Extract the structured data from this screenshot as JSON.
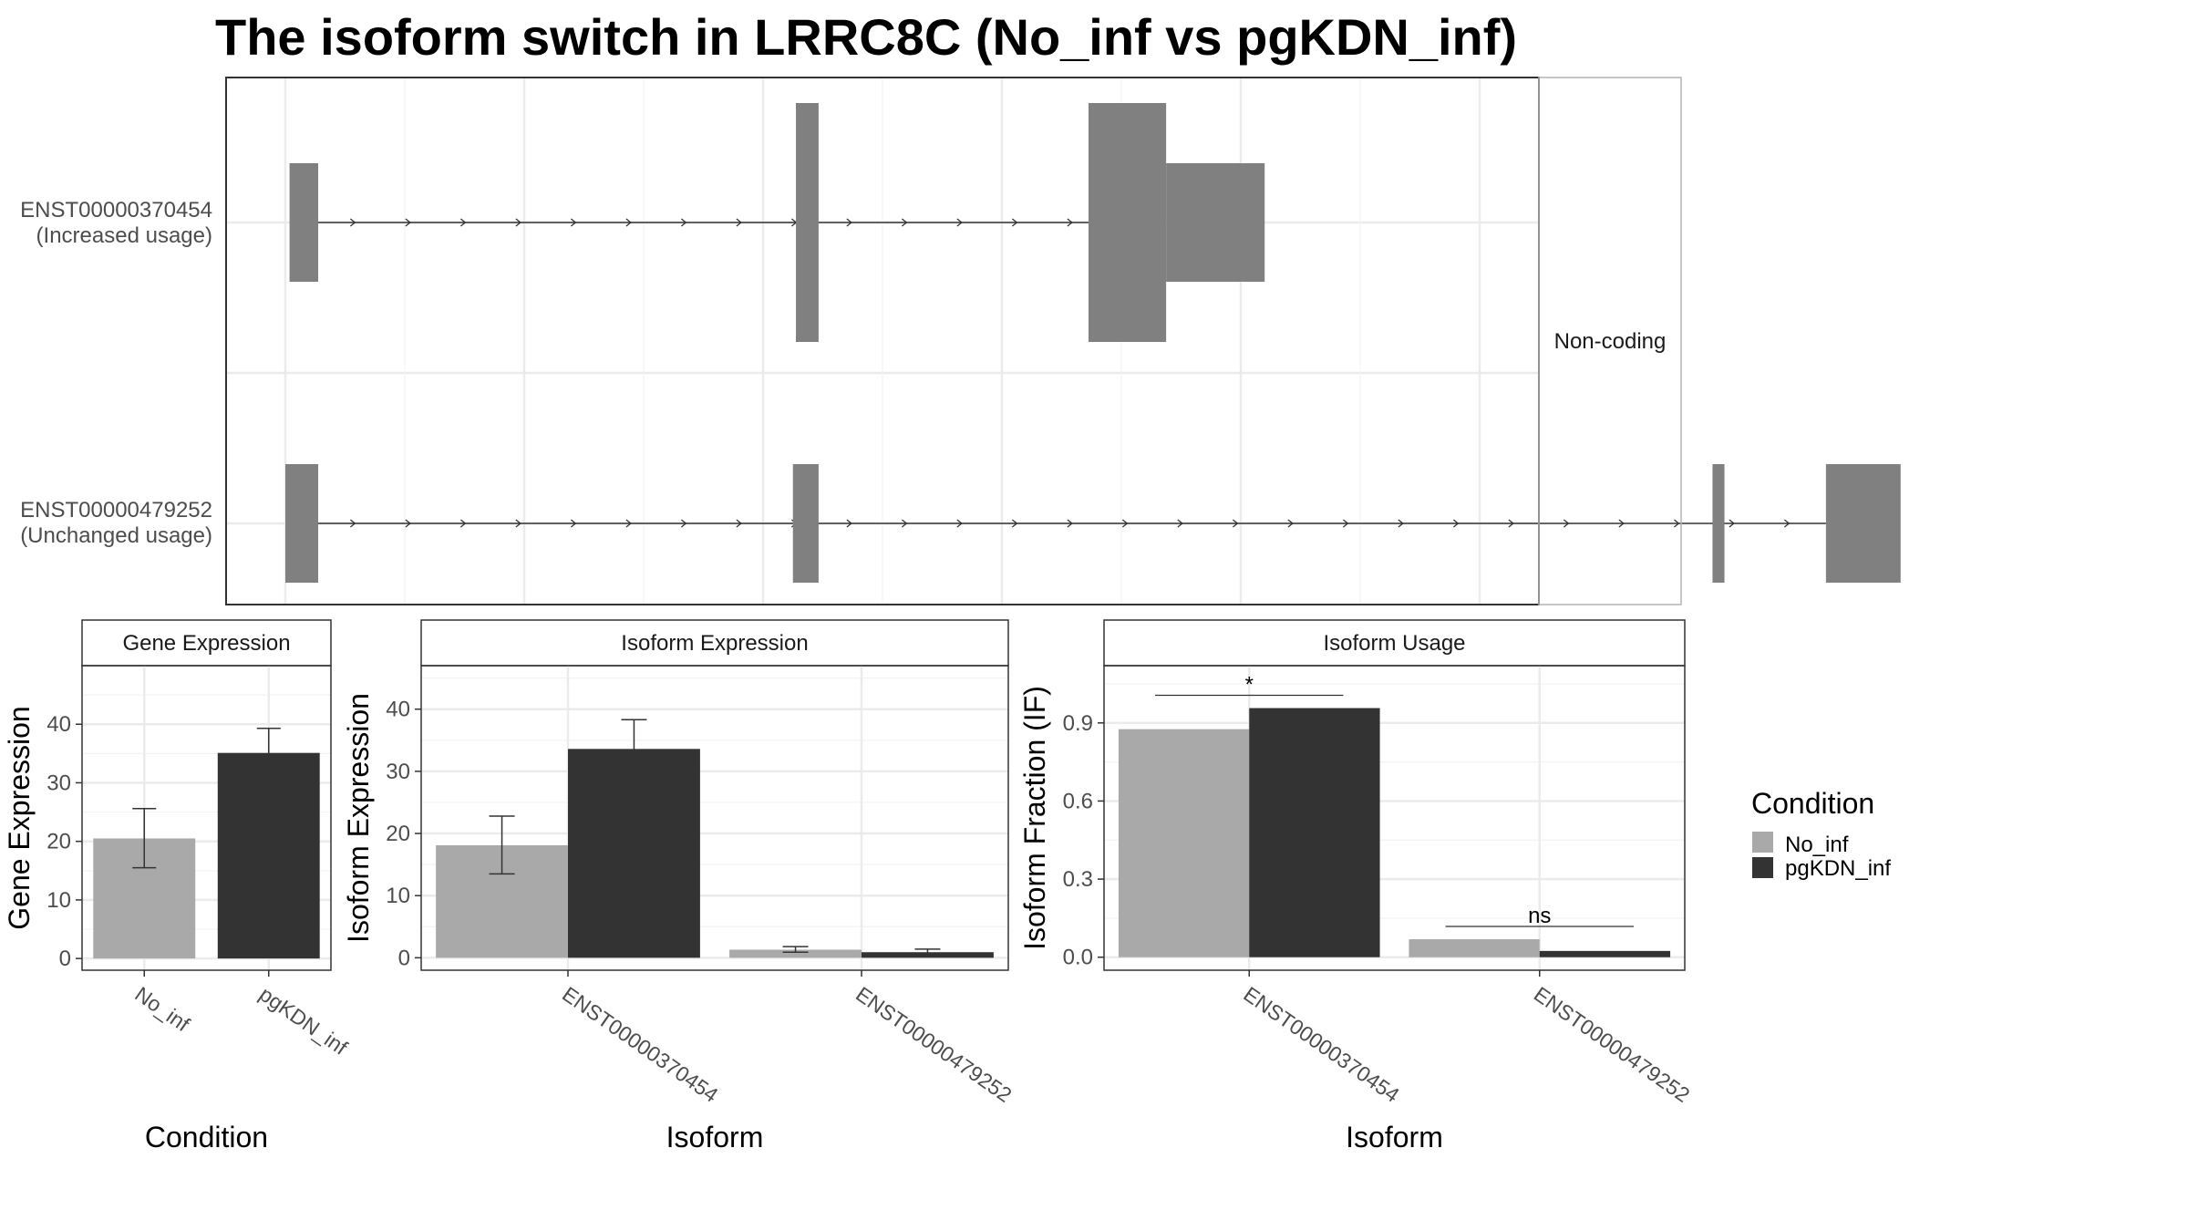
{
  "chart_data": [
    {
      "type": "gene-structure",
      "title": "The isoform switch in LRRC8C (No_inf vs pgKDN_inf)",
      "facet_label": "Non-coding",
      "isoforms": [
        {
          "id": "ENST00000370454",
          "label": "(Increased usage)",
          "exons": [
            [
              0.7,
              5.5,
              "utr"
            ],
            [
              85.5,
              89.3,
              "cds"
            ],
            [
              134.5,
              147.5,
              "cds"
            ],
            [
              147.5,
              164,
              "utr"
            ]
          ],
          "intron": [
            2.5,
            134.5
          ]
        },
        {
          "id": "ENST00000479252",
          "label": "(Unchanged usage)",
          "exons": [
            [
              0,
              5.5,
              "utr"
            ],
            [
              85,
              89.3,
              "utr"
            ],
            [
              239,
              241,
              "utr"
            ],
            [
              258,
              270.5,
              "utr"
            ]
          ],
          "intron": [
            2.5,
            258
          ]
        }
      ]
    },
    {
      "type": "bar",
      "strip": "Gene Expression",
      "xlabel": "Condition",
      "ylabel": "Gene Expression",
      "ylim": [
        -2,
        50
      ],
      "yticks": [
        0,
        10,
        20,
        30,
        40
      ],
      "categories": [
        "No_inf",
        "pgKDN_inf"
      ],
      "values": [
        20.5,
        35.1
      ],
      "error": [
        [
          15.5,
          25.6
        ],
        [
          30.8,
          39.3
        ]
      ]
    },
    {
      "type": "bar",
      "strip": "Isoform Expression",
      "xlabel": "Isoform",
      "ylabel": "Isoform Expression",
      "ylim": [
        -2,
        47
      ],
      "yticks": [
        0,
        10,
        20,
        30,
        40
      ],
      "categories": [
        "ENST00000370454",
        "ENST00000479252"
      ],
      "series": [
        {
          "name": "No_inf",
          "values": [
            18.1,
            1.3
          ],
          "error": [
            [
              13.5,
              22.8
            ],
            [
              0.9,
              1.8
            ]
          ]
        },
        {
          "name": "pgKDN_inf",
          "values": [
            33.6,
            0.9
          ],
          "error": [
            [
              29.0,
              38.3
            ],
            [
              0.5,
              1.4
            ]
          ]
        }
      ]
    },
    {
      "type": "bar",
      "strip": "Isoform Usage",
      "xlabel": "Isoform",
      "ylabel": "Isoform Fraction (IF)",
      "ylim": [
        -0.05,
        1.12
      ],
      "yticks": [
        "0.0",
        "0.3",
        "0.6",
        "0.9"
      ],
      "categories": [
        "ENST00000370454",
        "ENST00000479252"
      ],
      "series": [
        {
          "name": "No_inf",
          "values": [
            0.876,
            0.069
          ]
        },
        {
          "name": "pgKDN_inf",
          "values": [
            0.957,
            0.024
          ]
        }
      ],
      "annotations": [
        "*",
        "ns"
      ]
    }
  ],
  "legend": {
    "title": "Condition",
    "items": [
      {
        "label": "No_inf",
        "color": "#a9a9a9"
      },
      {
        "label": "pgKDN_inf",
        "color": "#333333"
      }
    ]
  },
  "colors": {
    "exon": "#808080",
    "grid": "#ebebeb",
    "panel_border": "#333333",
    "strip_border": "#b3b3b3"
  }
}
